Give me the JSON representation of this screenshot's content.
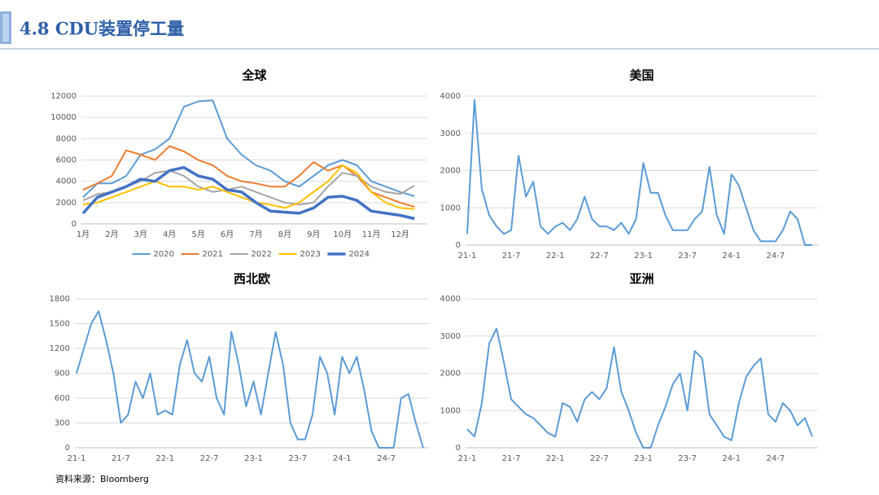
{
  "header": {
    "title": "4.8 CDU装置停工量"
  },
  "source": "资料来源：Bloomberg",
  "chart_data": [
    {
      "type": "line",
      "title": "全球",
      "legend": "bottom",
      "categories": [
        "1月",
        null,
        "2月",
        null,
        "3月",
        null,
        "4月",
        null,
        "5月",
        null,
        "6月",
        null,
        "7月",
        null,
        "8月",
        null,
        "9月",
        null,
        "10月",
        null,
        "11月",
        null,
        "12月",
        null
      ],
      "ylim": [
        0,
        12000
      ],
      "yticks": [
        0,
        2000,
        4000,
        6000,
        8000,
        10000,
        12000
      ],
      "grid": true,
      "series": [
        {
          "name": "2020",
          "color": "#5b9bd5",
          "values": [
            2500,
            3800,
            3800,
            4500,
            6500,
            7000,
            8000,
            11000,
            11500,
            11600,
            8000,
            6500,
            5500,
            5000,
            4000,
            3500,
            4500,
            5500,
            6000,
            5500,
            4000,
            3500,
            3000,
            2600
          ]
        },
        {
          "name": "2021",
          "color": "#ed7d31",
          "values": [
            3200,
            3800,
            4500,
            6900,
            6500,
            6000,
            7300,
            6800,
            6000,
            5500,
            4500,
            4000,
            3800,
            3500,
            3500,
            4500,
            5800,
            5000,
            5500,
            4500,
            3000,
            2500,
            2000,
            1600
          ]
        },
        {
          "name": "2022",
          "color": "#a5a5a5",
          "values": [
            2200,
            2800,
            3000,
            3500,
            4000,
            4800,
            5000,
            4500,
            3500,
            3000,
            3200,
            3500,
            3000,
            2500,
            2000,
            1800,
            2000,
            3500,
            4800,
            4500,
            3500,
            3000,
            2800,
            3600
          ]
        },
        {
          "name": "2023",
          "color": "#ffc000",
          "values": [
            1800,
            2000,
            2500,
            3000,
            3500,
            4000,
            3500,
            3500,
            3200,
            3500,
            3000,
            2500,
            2000,
            1800,
            1500,
            2000,
            3000,
            4000,
            5500,
            4800,
            3000,
            2000,
            1500,
            1400
          ]
        },
        {
          "name": "2024",
          "color": "#4472c4",
          "linewidth": 3.5,
          "values": [
            1000,
            2500,
            3000,
            3500,
            4200,
            4000,
            5000,
            5300,
            4500,
            4200,
            3200,
            3000,
            2000,
            1200,
            1100,
            1000,
            1500,
            2500,
            2600,
            2200,
            1200,
            1000,
            800,
            500
          ]
        }
      ]
    },
    {
      "type": "line",
      "title": "美国",
      "categories": [
        "21-1",
        null,
        null,
        null,
        null,
        null,
        "21-7",
        null,
        null,
        null,
        null,
        null,
        "22-1",
        null,
        null,
        null,
        null,
        null,
        "22-7",
        null,
        null,
        null,
        null,
        null,
        "23-1",
        null,
        null,
        null,
        null,
        null,
        "23-7",
        null,
        null,
        null,
        null,
        null,
        "24-1",
        null,
        null,
        null,
        null,
        null,
        "24-7",
        null,
        null,
        null,
        null,
        null
      ],
      "ylim": [
        0,
        4000
      ],
      "yticks": [
        0,
        1000,
        2000,
        3000,
        4000
      ],
      "grid": true,
      "color": "#5b9bd5",
      "values": [
        300,
        3900,
        1500,
        800,
        500,
        300,
        400,
        2400,
        1300,
        1700,
        500,
        300,
        500,
        600,
        400,
        700,
        1300,
        700,
        500,
        500,
        400,
        600,
        300,
        700,
        2200,
        1400,
        1400,
        800,
        400,
        400,
        400,
        700,
        900,
        2100,
        800,
        300,
        1900,
        1600,
        1000,
        400,
        100,
        100,
        100,
        400,
        900,
        700,
        0,
        0
      ]
    },
    {
      "type": "line",
      "title": "西北欧",
      "categories": [
        "21-1",
        null,
        null,
        null,
        null,
        null,
        "21-7",
        null,
        null,
        null,
        null,
        null,
        "22-1",
        null,
        null,
        null,
        null,
        null,
        "22-7",
        null,
        null,
        null,
        null,
        null,
        "23-1",
        null,
        null,
        null,
        null,
        null,
        "23-7",
        null,
        null,
        null,
        null,
        null,
        "24-1",
        null,
        null,
        null,
        null,
        null,
        "24-7",
        null,
        null,
        null,
        null,
        null
      ],
      "ylim": [
        0,
        1800
      ],
      "yticks": [
        0,
        300,
        600,
        900,
        1200,
        1500,
        1800
      ],
      "grid": true,
      "color": "#5b9bd5",
      "values": [
        900,
        1200,
        1500,
        1650,
        1300,
        900,
        300,
        400,
        800,
        600,
        900,
        400,
        450,
        400,
        1000,
        1300,
        900,
        800,
        1100,
        600,
        400,
        1400,
        1000,
        500,
        800,
        400,
        900,
        1400,
        1000,
        300,
        100,
        100,
        400,
        1100,
        900,
        400,
        1100,
        900,
        1100,
        700,
        200,
        0,
        0,
        0,
        600,
        650,
        300,
        0
      ]
    },
    {
      "type": "line",
      "title": "亚洲",
      "categories": [
        "21-1",
        null,
        null,
        null,
        null,
        null,
        "21-7",
        null,
        null,
        null,
        null,
        null,
        "22-1",
        null,
        null,
        null,
        null,
        null,
        "22-7",
        null,
        null,
        null,
        null,
        null,
        "23-1",
        null,
        null,
        null,
        null,
        null,
        "23-7",
        null,
        null,
        null,
        null,
        null,
        "24-1",
        null,
        null,
        null,
        null,
        null,
        "24-7",
        null,
        null,
        null,
        null,
        null
      ],
      "ylim": [
        0,
        4000
      ],
      "yticks": [
        0,
        1000,
        2000,
        3000,
        4000
      ],
      "grid": true,
      "color": "#5b9bd5",
      "values": [
        500,
        300,
        1200,
        2800,
        3200,
        2300,
        1300,
        1100,
        900,
        800,
        600,
        400,
        300,
        1200,
        1100,
        700,
        1300,
        1500,
        1300,
        1600,
        2700,
        1500,
        1000,
        400,
        0,
        0,
        600,
        1100,
        1700,
        2000,
        1000,
        2600,
        2400,
        900,
        600,
        300,
        200,
        1200,
        1900,
        2200,
        2400,
        900,
        700,
        1200,
        1000,
        600,
        800,
        300
      ]
    }
  ]
}
